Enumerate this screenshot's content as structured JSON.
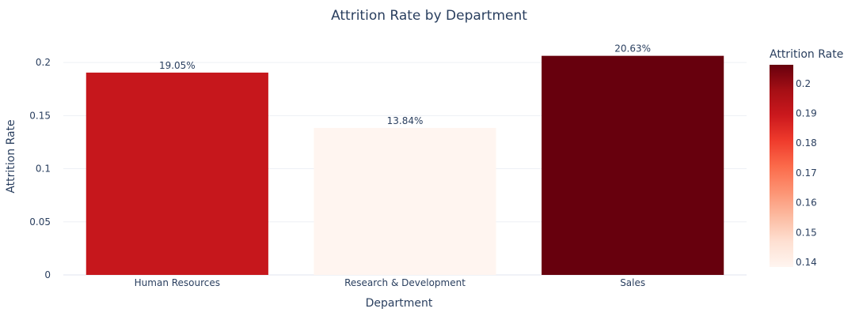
{
  "chart_data": {
    "type": "bar",
    "title": "Attrition Rate by Department",
    "xlabel": "Department",
    "ylabel": "Attrition Rate",
    "categories": [
      "Human Resources",
      "Research & Development",
      "Sales"
    ],
    "values": [
      0.1905,
      0.1384,
      0.2063
    ],
    "data_labels": [
      "19.05%",
      "13.84%",
      "20.63%"
    ],
    "ylim": [
      0,
      0.2172
    ],
    "y_ticks": [
      0,
      0.05,
      0.1,
      0.15,
      0.2
    ],
    "y_tick_labels": [
      "0",
      "0.05",
      "0.1",
      "0.15",
      "0.2"
    ],
    "grid": true,
    "colorbar": {
      "title": "Attrition Rate",
      "range": [
        0.1384,
        0.2063
      ],
      "ticks": [
        0.14,
        0.15,
        0.16,
        0.17,
        0.18,
        0.19,
        0.2
      ],
      "tick_labels": [
        "0.14",
        "0.15",
        "0.16",
        "0.17",
        "0.18",
        "0.19",
        "0.2"
      ],
      "colorscale": [
        "#fff5f0",
        "#fee0d2",
        "#fcbba1",
        "#fc9272",
        "#fb6a4a",
        "#ef3b2c",
        "#cb181d",
        "#a50f15",
        "#67000d"
      ]
    }
  }
}
